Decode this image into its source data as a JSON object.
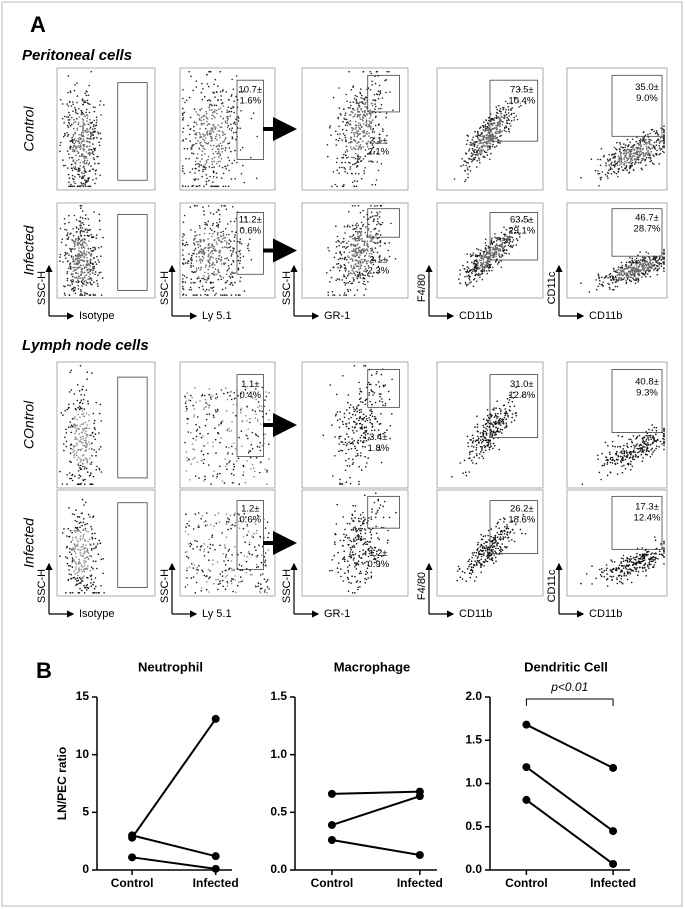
{
  "panel_a": {
    "label": "A",
    "sections": [
      {
        "title": "Peritoneal cells",
        "rows": [
          {
            "label": "Control",
            "gates": [
              [
                "10.7±",
                "1.6%"
              ],
              [
                "2.1±",
                "2.1%"
              ],
              [
                "73.5±",
                "10.4%"
              ],
              [
                "35.0±",
                "9.0%"
              ]
            ]
          },
          {
            "label": "Infected",
            "gates": [
              [
                "11.2±",
                "0.6%"
              ],
              [
                "2.1±",
                "2.3%"
              ],
              [
                "63.5±",
                "29.1%"
              ],
              [
                "46.7±",
                "28.7%"
              ]
            ]
          }
        ],
        "y_labels": [
          "SSC-H",
          "SSC-H",
          "SSC-H",
          "F4/80",
          "CD11c"
        ],
        "x_labels": [
          "Isotype",
          "Ly 5.1",
          "GR-1",
          "CD11b",
          "CD11b"
        ]
      },
      {
        "title": "Lymph node cells",
        "rows": [
          {
            "label": "COntrol",
            "gates": [
              [
                "1.1±",
                "0.4%"
              ],
              [
                "3.4±",
                "1.8%"
              ],
              [
                "31.0±",
                "12.8%"
              ],
              [
                "40.8±",
                "9.3%"
              ]
            ]
          },
          {
            "label": "Infected",
            "gates": [
              [
                "1.2±",
                "0.6%"
              ],
              [
                "1.2±",
                "0.9%"
              ],
              [
                "26.2±",
                "18.6%"
              ],
              [
                "17.3±",
                "12.4%"
              ]
            ]
          }
        ],
        "y_labels": [
          "SSC-H",
          "SSC-H",
          "SSC-H",
          "F4/80",
          "CD11c"
        ],
        "x_labels": [
          "Isotype",
          "Ly 5.1",
          "GR-1",
          "CD11b",
          "CD11b"
        ]
      }
    ]
  },
  "panel_b_label": "B",
  "chart_data": [
    {
      "type": "line",
      "title": "Neutrophil",
      "y_label": "LN/PEC ratio",
      "categories": [
        "Control",
        "Infected"
      ],
      "series": [
        {
          "color": "#000000",
          "values": [
            2.8,
            13.1
          ]
        },
        {
          "color": "#000000",
          "values": [
            3.0,
            1.2
          ]
        },
        {
          "color": "#000000",
          "values": [
            1.1,
            0.1
          ]
        }
      ],
      "ylim": [
        0,
        15
      ],
      "yticks": [
        0,
        5,
        10,
        15
      ]
    },
    {
      "type": "line",
      "title": "Macrophage",
      "categories": [
        "Control",
        "Infected"
      ],
      "series": [
        {
          "color": "#000000",
          "values": [
            0.66,
            0.68
          ]
        },
        {
          "color": "#000000",
          "values": [
            0.39,
            0.64
          ]
        },
        {
          "color": "#000000",
          "values": [
            0.26,
            0.13
          ]
        }
      ],
      "ylim": [
        0,
        1.5
      ],
      "yticks": [
        {
          "value": 0,
          "label": "0.0"
        },
        {
          "value": 0.5,
          "label": "0.5"
        },
        {
          "value": 1,
          "label": "1.0"
        },
        {
          "value": 1.5,
          "label": "1.5"
        }
      ]
    },
    {
      "type": "line",
      "title": "Dendritic Cell",
      "annotation": "p<0.01",
      "categories": [
        "Control",
        "Infected"
      ],
      "series": [
        {
          "color": "#000000",
          "values": [
            1.68,
            1.18
          ]
        },
        {
          "color": "#000000",
          "values": [
            1.19,
            0.45
          ]
        },
        {
          "color": "#000000",
          "values": [
            0.81,
            0.07
          ]
        }
      ],
      "ylim": [
        0,
        2
      ],
      "yticks": [
        {
          "value": 0,
          "label": "0.0"
        },
        {
          "value": 0.5,
          "label": "0.5"
        },
        {
          "value": 1,
          "label": "1.0"
        },
        {
          "value": 1.5,
          "label": "1.5"
        },
        {
          "value": 2,
          "label": "2.0"
        }
      ]
    }
  ]
}
